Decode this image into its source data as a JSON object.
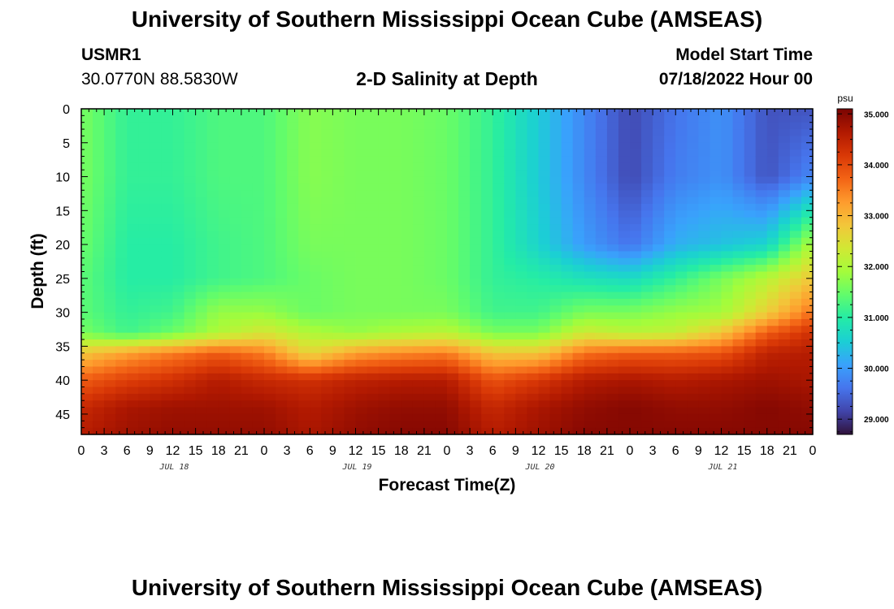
{
  "header": {
    "title": "University of Southern Mississippi Ocean Cube (AMSEAS)",
    "station": "USMR1",
    "coords": "30.0770N  88.5830W",
    "plot_title": "2-D Salinity at Depth",
    "model_label": "Model Start Time",
    "model_time": "07/18/2022 Hour 00"
  },
  "footer": {
    "title": "University of Southern Mississippi Ocean Cube (AMSEAS)"
  },
  "chart_data": {
    "type": "heatmap",
    "title": "2-D Salinity at Depth",
    "xlabel": "Forecast Time(Z)",
    "ylabel": "Depth (ft)",
    "xlim": [
      0,
      96
    ],
    "ylim": [
      0,
      48
    ],
    "x_ticks": [
      0,
      3,
      6,
      9,
      12,
      15,
      18,
      21,
      24,
      27,
      30,
      33,
      36,
      39,
      42,
      45,
      48,
      51,
      54,
      57,
      60,
      63,
      66,
      69,
      72,
      75,
      78,
      81,
      84,
      87,
      90,
      93,
      96
    ],
    "x_tick_labels": [
      "0",
      "3",
      "6",
      "9",
      "12",
      "15",
      "18",
      "21",
      "0",
      "3",
      "6",
      "9",
      "12",
      "15",
      "18",
      "21",
      "0",
      "3",
      "6",
      "9",
      "12",
      "15",
      "18",
      "21",
      "0",
      "3",
      "6",
      "9",
      "12",
      "15",
      "18",
      "21",
      "0"
    ],
    "day_labels": [
      {
        "hour": 12,
        "label": "JUL 18"
      },
      {
        "hour": 36,
        "label": "JUL 19"
      },
      {
        "hour": 60,
        "label": "JUL 20"
      },
      {
        "hour": 84,
        "label": "JUL 21"
      }
    ],
    "y_ticks": [
      0,
      5,
      10,
      15,
      20,
      25,
      30,
      35,
      40,
      45
    ],
    "y_tick_labels": [
      "0",
      "5",
      "10",
      "15",
      "20",
      "25",
      "30",
      "35",
      "40",
      "45"
    ],
    "colorbar": {
      "unit": "psu",
      "min": 28.7,
      "max": 35.1,
      "ticks": [
        29,
        30,
        31,
        32,
        33,
        34,
        35
      ],
      "tick_labels": [
        "29.000",
        "30.000",
        "31.000",
        "32.000",
        "33.000",
        "34.000",
        "35.000"
      ],
      "colors": [
        "#30123b",
        "#4145ab",
        "#4675ed",
        "#39a2fc",
        "#1bcfd4",
        "#24eca6",
        "#61fc6c",
        "#a4fc3b",
        "#d1e834",
        "#f3c63a",
        "#fe9b2d",
        "#f36315",
        "#d93806",
        "#b11901",
        "#7a0402"
      ]
    },
    "value_samples": {
      "note": "salinity (psu) sampled on the forecast-hour / depth grid",
      "hours": [
        0,
        6,
        12,
        18,
        24,
        30,
        36,
        42,
        48,
        54,
        60,
        66,
        72,
        78,
        84,
        90,
        96
      ],
      "depths": [
        0,
        10,
        20,
        25,
        30,
        33,
        36,
        40,
        44,
        48
      ],
      "values": [
        [
          31.6,
          31.1,
          31.1,
          31.3,
          31.3,
          31.7,
          31.6,
          31.6,
          31.5,
          31.1,
          30.5,
          29.8,
          29.2,
          29.6,
          29.9,
          29.3,
          29.3
        ],
        [
          31.6,
          31.1,
          31.1,
          31.3,
          31.3,
          31.7,
          31.6,
          31.6,
          31.5,
          31.1,
          30.5,
          29.8,
          29.2,
          29.7,
          29.9,
          29.3,
          29.8
        ],
        [
          31.5,
          31.0,
          31.0,
          31.2,
          31.3,
          31.6,
          31.6,
          31.6,
          31.5,
          31.1,
          30.6,
          30.0,
          29.6,
          30.2,
          30.4,
          30.6,
          32.0
        ],
        [
          31.4,
          31.0,
          31.0,
          31.2,
          31.3,
          31.5,
          31.6,
          31.6,
          31.5,
          31.1,
          31.0,
          30.8,
          30.7,
          31.1,
          31.6,
          32.1,
          32.8
        ],
        [
          31.4,
          31.1,
          31.2,
          31.8,
          31.8,
          31.5,
          31.6,
          31.6,
          31.6,
          31.2,
          31.2,
          31.6,
          31.6,
          31.8,
          31.9,
          32.7,
          33.6
        ],
        [
          31.6,
          31.2,
          31.5,
          32.0,
          32.4,
          32.0,
          31.8,
          32.0,
          32.1,
          31.6,
          31.6,
          32.3,
          32.1,
          32.2,
          32.8,
          33.8,
          34.3
        ],
        [
          32.8,
          33.2,
          33.5,
          33.8,
          33.5,
          32.6,
          33.2,
          33.4,
          33.5,
          32.8,
          32.8,
          33.6,
          33.8,
          33.8,
          33.9,
          34.5,
          34.6
        ],
        [
          33.8,
          34.1,
          34.3,
          34.6,
          34.4,
          34.3,
          34.5,
          34.6,
          34.6,
          33.9,
          34.2,
          34.6,
          34.7,
          34.6,
          34.7,
          34.8,
          34.7
        ],
        [
          34.4,
          34.7,
          34.8,
          34.8,
          34.8,
          34.6,
          34.8,
          34.9,
          34.9,
          34.4,
          34.7,
          34.9,
          35.0,
          34.9,
          34.9,
          35.0,
          34.9
        ],
        [
          34.6,
          34.8,
          34.9,
          34.9,
          34.9,
          34.7,
          34.9,
          35.0,
          35.0,
          34.6,
          34.8,
          35.0,
          35.0,
          35.0,
          35.0,
          35.0,
          35.0
        ]
      ]
    }
  }
}
